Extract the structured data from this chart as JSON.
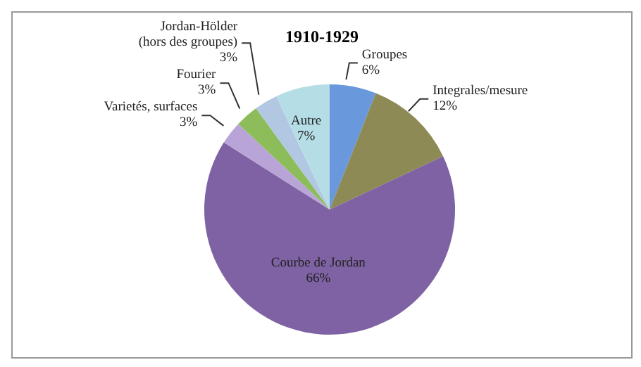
{
  "chart_data": {
    "type": "pie",
    "title": "1910-1929",
    "categories": [
      "Groupes",
      "Integrales/mesure",
      "Courbe de Jordan",
      "Varietés, surfaces",
      "Fourier",
      "Jordan-Hölder (hors des groupes)",
      "Autre"
    ],
    "values": [
      6,
      12,
      66,
      3,
      3,
      3,
      7
    ],
    "value_labels": [
      "6%",
      "12%",
      "66%",
      "3%",
      "3%",
      "3%",
      "7%"
    ],
    "colors": [
      "#6a98dc",
      "#8e8a56",
      "#7e62a3",
      "#b9a4d8",
      "#8dbd5a",
      "#b2c7e2",
      "#b5dde6"
    ]
  }
}
